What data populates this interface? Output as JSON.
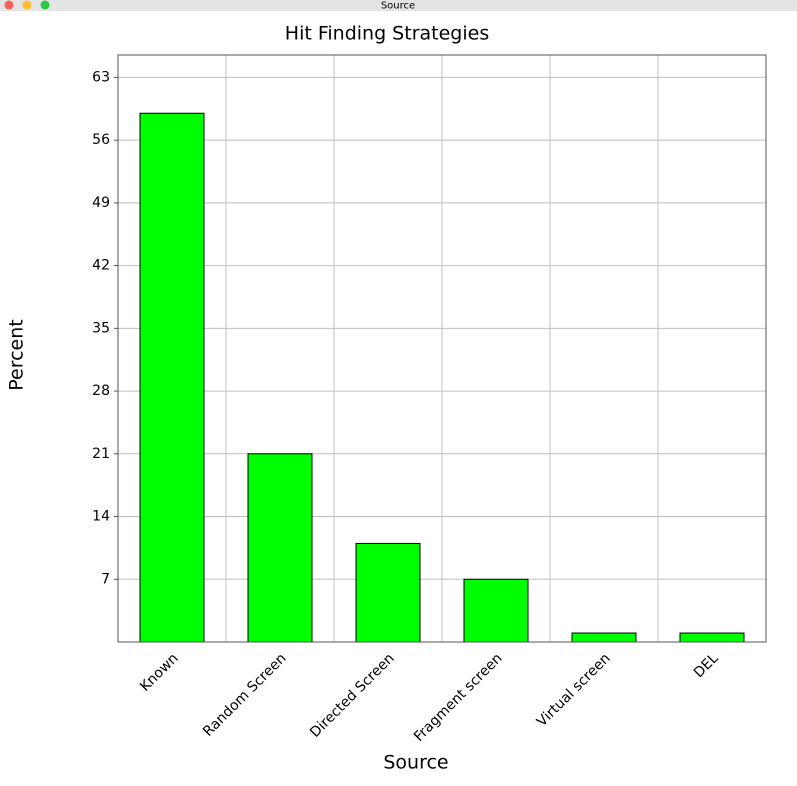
{
  "window": {
    "title": "Source"
  },
  "chart_data": {
    "type": "bar",
    "title": "Hit Finding Strategies",
    "x_label": "Source",
    "y_label": "Percent",
    "categories": [
      "Known",
      "Random Screen",
      "Directed Screen",
      "Fragment screen",
      "Virtual screen",
      "DEL"
    ],
    "values": [
      59,
      21,
      11,
      7,
      1,
      1
    ],
    "color": "#00ff00",
    "ylim": [
      0,
      65.5
    ],
    "yticks": [
      7,
      14,
      21,
      28,
      35,
      42,
      49,
      56,
      63
    ],
    "grid": true
  }
}
